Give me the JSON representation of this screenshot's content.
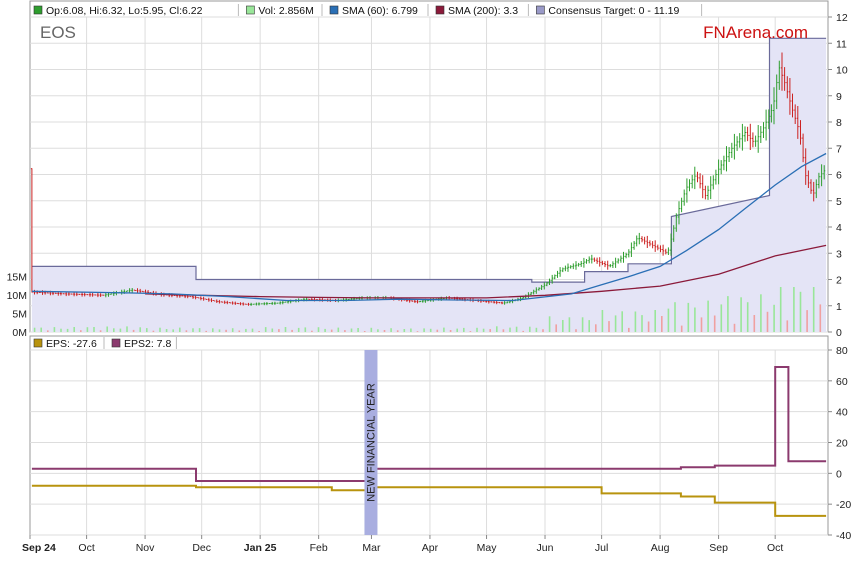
{
  "symbol": "EOS",
  "brand": "FNArena.com",
  "colors": {
    "price_up": "#2e9e2e",
    "price_down": "#cc2222",
    "sma60": "#2a6fb5",
    "sma200": "#8b1a3a",
    "consensus_fill": "#e4e4f6",
    "consensus_line": "#6a6a9a",
    "eps": "#b8930e",
    "eps2": "#8b3a6e",
    "vol_up": "#99e699",
    "vol_down": "#f0a0a0",
    "brand": "#cc1111",
    "marker": "#a9aee0"
  },
  "legend_top": [
    {
      "label": "Op:6.08, Hi:6.32, Lo:5.95, Cl:6.22",
      "swatch": "#2e9e2e"
    },
    {
      "label": "Vol: 2.856M",
      "swatch": "#99e699"
    },
    {
      "label": "SMA (60): 6.799",
      "swatch": "#2a6fb5"
    },
    {
      "label": "SMA (200): 3.3",
      "swatch": "#8b1a3a"
    },
    {
      "label": "Consensus Target: 0 - 11.19",
      "swatch": "#9a9ac8"
    }
  ],
  "legend_bottom": [
    {
      "label": "EPS: -27.6",
      "swatch": "#b8930e"
    },
    {
      "label": "EPS2: 7.8",
      "swatch": "#8b3a6e"
    }
  ],
  "marker_label": "NEW FINANCIAL YEAR",
  "chart_data": {
    "type": "line",
    "x_tick_labels": [
      "Sep 24",
      "Oct",
      "Nov",
      "Dec",
      "Jan 25",
      "Feb",
      "Mar",
      "Apr",
      "May",
      "Jun",
      "Jul",
      "Aug",
      "Sep",
      "Oct"
    ],
    "x_tick_bold": [
      true,
      false,
      false,
      false,
      true,
      false,
      false,
      false,
      false,
      false,
      false,
      false,
      false,
      false
    ],
    "price_axis": {
      "ylim": [
        0,
        12
      ],
      "ticks": [
        "0",
        "1",
        "2",
        "3",
        "4",
        "5",
        "6",
        "7",
        "8",
        "9",
        "10",
        "11",
        "12"
      ]
    },
    "volume_axis": {
      "ticks": [
        "0M",
        "5M",
        "10M",
        "15M"
      ]
    },
    "eps_axis": {
      "ylim": [
        -40,
        80
      ],
      "ticks": [
        "-40",
        "-20",
        "0",
        "20",
        "40",
        "60",
        "80"
      ]
    },
    "price_close": [
      [
        "2024-09-02",
        1.52
      ],
      [
        "2024-09-20",
        1.45
      ],
      [
        "2024-10-10",
        1.4
      ],
      [
        "2024-10-25",
        1.6
      ],
      [
        "2024-11-10",
        1.42
      ],
      [
        "2024-11-25",
        1.35
      ],
      [
        "2024-12-10",
        1.15
      ],
      [
        "2024-12-25",
        1.05
      ],
      [
        "2025-01-10",
        1.1
      ],
      [
        "2025-01-25",
        1.25
      ],
      [
        "2025-02-10",
        1.2
      ],
      [
        "2025-02-25",
        1.3
      ],
      [
        "2025-03-10",
        1.3
      ],
      [
        "2025-03-25",
        1.15
      ],
      [
        "2025-04-10",
        1.3
      ],
      [
        "2025-04-25",
        1.2
      ],
      [
        "2025-05-10",
        1.1
      ],
      [
        "2025-05-20",
        1.3
      ],
      [
        "2025-06-01",
        1.8
      ],
      [
        "2025-06-10",
        2.4
      ],
      [
        "2025-06-20",
        2.6
      ],
      [
        "2025-06-25",
        2.8
      ],
      [
        "2025-07-05",
        2.5
      ],
      [
        "2025-07-15",
        3.0
      ],
      [
        "2025-07-20",
        3.6
      ],
      [
        "2025-07-28",
        3.3
      ],
      [
        "2025-08-05",
        3.0
      ],
      [
        "2025-08-10",
        4.5
      ],
      [
        "2025-08-15",
        5.5
      ],
      [
        "2025-08-20",
        6.0
      ],
      [
        "2025-08-25",
        5.2
      ],
      [
        "2025-09-01",
        6.2
      ],
      [
        "2025-09-08",
        7.0
      ],
      [
        "2025-09-15",
        7.6
      ],
      [
        "2025-09-20",
        7.2
      ],
      [
        "2025-09-25",
        7.8
      ],
      [
        "2025-09-30",
        8.6
      ],
      [
        "2025-10-03",
        10.1
      ],
      [
        "2025-10-06",
        9.5
      ],
      [
        "2025-10-10",
        8.5
      ],
      [
        "2025-10-14",
        7.6
      ],
      [
        "2025-10-17",
        6.0
      ],
      [
        "2025-10-21",
        5.2
      ],
      [
        "2025-10-24",
        5.9
      ],
      [
        "2025-10-28",
        6.22
      ]
    ],
    "sma60": [
      [
        "2024-09-02",
        1.55
      ],
      [
        "2024-10-15",
        1.5
      ],
      [
        "2024-11-15",
        1.45
      ],
      [
        "2024-12-15",
        1.35
      ],
      [
        "2025-01-15",
        1.2
      ],
      [
        "2025-02-15",
        1.2
      ],
      [
        "2025-03-15",
        1.25
      ],
      [
        "2025-04-15",
        1.22
      ],
      [
        "2025-05-15",
        1.2
      ],
      [
        "2025-06-15",
        1.45
      ],
      [
        "2025-07-01",
        1.8
      ],
      [
        "2025-07-15",
        2.1
      ],
      [
        "2025-08-01",
        2.5
      ],
      [
        "2025-08-15",
        3.1
      ],
      [
        "2025-09-01",
        3.9
      ],
      [
        "2025-09-15",
        4.7
      ],
      [
        "2025-10-01",
        5.6
      ],
      [
        "2025-10-15",
        6.3
      ],
      [
        "2025-10-28",
        6.8
      ]
    ],
    "sma200": [
      [
        "2024-11-01",
        1.45
      ],
      [
        "2024-12-01",
        1.4
      ],
      [
        "2025-01-01",
        1.35
      ],
      [
        "2025-02-01",
        1.32
      ],
      [
        "2025-03-01",
        1.3
      ],
      [
        "2025-04-01",
        1.3
      ],
      [
        "2025-05-01",
        1.3
      ],
      [
        "2025-06-01",
        1.4
      ],
      [
        "2025-07-01",
        1.55
      ],
      [
        "2025-08-01",
        1.75
      ],
      [
        "2025-09-01",
        2.2
      ],
      [
        "2025-10-01",
        2.9
      ],
      [
        "2025-10-28",
        3.3
      ]
    ],
    "consensus_target": [
      [
        "2024-09-02",
        2.5
      ],
      [
        "2024-11-28",
        2.5
      ],
      [
        "2024-11-28",
        2.0
      ],
      [
        "2025-05-25",
        2.0
      ],
      [
        "2025-05-25",
        1.9
      ],
      [
        "2025-06-22",
        1.9
      ],
      [
        "2025-06-22",
        2.3
      ],
      [
        "2025-07-15",
        2.3
      ],
      [
        "2025-07-15",
        2.6
      ],
      [
        "2025-08-07",
        2.6
      ],
      [
        "2025-08-07",
        4.4
      ],
      [
        "2025-09-28",
        5.2
      ],
      [
        "2025-09-28",
        11.19
      ],
      [
        "2025-10-28",
        11.19
      ]
    ],
    "eps": [
      [
        "2024-09-02",
        -8.0
      ],
      [
        "2024-11-28",
        -8.0
      ],
      [
        "2024-11-28",
        -9.0
      ],
      [
        "2025-02-08",
        -9.0
      ],
      [
        "2025-02-08",
        -11.0
      ],
      [
        "2025-03-03",
        -11.0
      ],
      [
        "2025-03-03",
        -9.0
      ],
      [
        "2025-07-01",
        -9.0
      ],
      [
        "2025-07-01",
        -13.0
      ],
      [
        "2025-08-12",
        -13.0
      ],
      [
        "2025-08-12",
        -15.0
      ],
      [
        "2025-08-30",
        -15.0
      ],
      [
        "2025-08-30",
        -19.0
      ],
      [
        "2025-10-01",
        -19.0
      ],
      [
        "2025-10-01",
        -27.6
      ],
      [
        "2025-10-28",
        -27.6
      ]
    ],
    "eps2": [
      [
        "2024-09-02",
        3.0
      ],
      [
        "2024-11-28",
        3.0
      ],
      [
        "2024-11-28",
        -5.0
      ],
      [
        "2025-03-03",
        -5.0
      ],
      [
        "2025-03-03",
        3.0
      ],
      [
        "2025-08-12",
        3.0
      ],
      [
        "2025-08-12",
        4.0
      ],
      [
        "2025-08-30",
        4.0
      ],
      [
        "2025-08-30",
        5.0
      ],
      [
        "2025-10-01",
        5.0
      ],
      [
        "2025-10-01",
        69.0
      ],
      [
        "2025-10-08",
        69.0
      ],
      [
        "2025-10-08",
        7.8
      ],
      [
        "2025-10-28",
        7.8
      ]
    ],
    "volume_monthly_M": [
      [
        "2024-09",
        0.8
      ],
      [
        "2024-10",
        0.9
      ],
      [
        "2024-11",
        0.7
      ],
      [
        "2024-12",
        0.6
      ],
      [
        "2025-01",
        0.8
      ],
      [
        "2025-02",
        0.7
      ],
      [
        "2025-03",
        0.6
      ],
      [
        "2025-04",
        0.7
      ],
      [
        "2025-05",
        0.9
      ],
      [
        "2025-06",
        2.5
      ],
      [
        "2025-07",
        3.5
      ],
      [
        "2025-08",
        5.0
      ],
      [
        "2025-09",
        6.0
      ],
      [
        "2025-10",
        8.0
      ]
    ],
    "marker_date": "2025-03-01"
  }
}
